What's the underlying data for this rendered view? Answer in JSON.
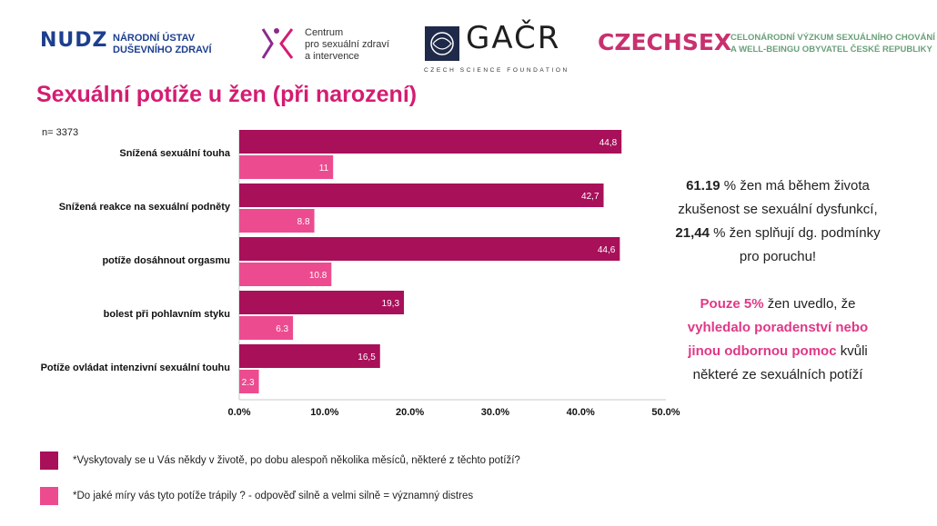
{
  "logos": {
    "nudz": {
      "mark": "NUDZ",
      "line1": "NÁRODNÍ ÚSTAV",
      "line2": "DUŠEVNÍHO ZDRAVÍ"
    },
    "centrum": {
      "line1": "Centrum",
      "line2": "pro sexuální zdraví",
      "line3": "a intervence"
    },
    "gacr": {
      "word": "GAČR",
      "sub": "CZECH SCIENCE FOUNDATION"
    },
    "czechsex": {
      "word": "CZECHSEX",
      "line1": "CELONÁRODNÍ VÝZKUM SEXUÁLNÍHO CHOVÁNÍ",
      "line2": "A WELL-BEINGU OBYVATEL ČESKÉ REPUBLIKY"
    }
  },
  "title": "Sexuální potíže u žen (při narození)",
  "n_label": "n= 3373",
  "colors": {
    "dark_series": "#a8105a",
    "light_series": "#ec4c8f",
    "title": "#d41c72",
    "accent_text": "#e03887"
  },
  "chart_data": {
    "type": "bar",
    "orientation": "horizontal",
    "categories": [
      "Snížená sexuální touha",
      "Snížená reakce na sexuální podněty",
      "potíže dosáhnout orgasmu",
      "bolest při pohlavním styku",
      "Potíže ovládat intenzivní sexuální touhu"
    ],
    "series": [
      {
        "values": [
          44.8,
          42.7,
          44.6,
          19.3,
          16.5
        ],
        "labels": [
          "44,8",
          "42,7",
          "44,6",
          "19,3",
          "16,5"
        ],
        "color": "#a8105a"
      },
      {
        "values": [
          11,
          8.8,
          10.8,
          6.3,
          2.3
        ],
        "labels": [
          "11",
          "8.8",
          "10.8",
          "6.3",
          "2.3"
        ],
        "color": "#ec4c8f"
      }
    ],
    "xlim": [
      0,
      50
    ],
    "x_ticks": [
      0,
      10,
      20,
      30,
      40,
      50
    ],
    "x_tick_labels": [
      "0.0%",
      "10.0%",
      "20.0%",
      "30.0%",
      "40.0%",
      "50.0%"
    ],
    "grid": false
  },
  "info": {
    "p1_num": "61.19",
    "p1_text": " % žen má během života zkušenost se sexuální dysfunkcí, ",
    "p1_num2": "21,44",
    "p1_text2": " % žen splňují dg. podmínky pro poruchu!",
    "p2_hl1": "Pouze 5%",
    "p2_text1": " žen uvedlo, že ",
    "p2_hl2": "vyhledalo poradenství nebo jinou odbornou pomoc",
    "p2_text2": " kvůli některé ze sexuálních potíží"
  },
  "legend": {
    "item1": "*Vyskytovaly se u Vás někdy v životě, po dobu alespoň několika měsíců, některé z těchto potíží?",
    "item2": "*Do jaké míry vás tyto potíže trápily ? - odpověď silně a velmi silně = významný distres"
  }
}
